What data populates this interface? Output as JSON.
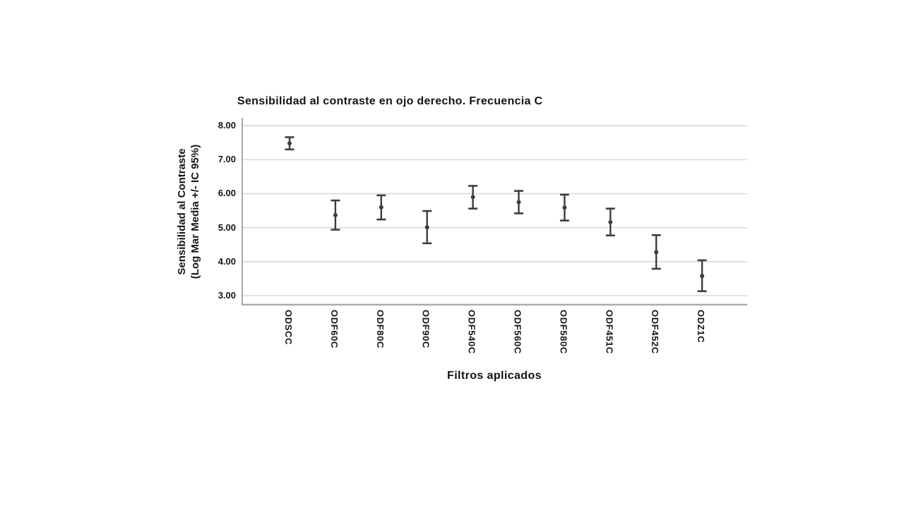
{
  "chart_data": {
    "type": "scatter",
    "subtype": "errorbar",
    "title": "Sensibilidad al contraste en ojo derecho. Frecuencia C",
    "xlabel": "Filtros aplicados",
    "ylabel_line1": "Sensibilidad al Contraste",
    "ylabel_line2": "(Log Mar Media +/- IC 95%)",
    "categories": [
      "ODSCC",
      "ODF60C",
      "ODF80C",
      "ODF90C",
      "ODF540C",
      "ODF560C",
      "ODF580C",
      "ODF451C",
      "ODF452C",
      "ODZ1C"
    ],
    "series": [
      {
        "name": "Media +/- IC 95%",
        "means": [
          7.48,
          5.37,
          5.6,
          5.01,
          5.9,
          5.75,
          5.59,
          5.16,
          4.28,
          3.58
        ],
        "ci_low": [
          7.3,
          4.94,
          5.24,
          4.54,
          5.56,
          5.42,
          5.21,
          4.77,
          3.79,
          3.13
        ],
        "ci_high": [
          7.66,
          5.8,
          5.95,
          5.49,
          6.23,
          6.08,
          5.97,
          5.56,
          4.78,
          4.04
        ]
      }
    ],
    "yticks": [
      8.0,
      7.0,
      6.0,
      5.0,
      4.0,
      3.0
    ],
    "ytick_labels": [
      "8.00",
      "7.00",
      "6.00",
      "5.00",
      "4.00",
      "3.00"
    ],
    "ylim": [
      2.71,
      8.23
    ],
    "grid": "horizontal",
    "legend": "none",
    "marker": "circle",
    "colors": {
      "errorbar": "#3d3d3d",
      "gridline": "#dadada",
      "axis": "#a9a9a9",
      "text": "#141414",
      "background": "#ffffff"
    }
  }
}
